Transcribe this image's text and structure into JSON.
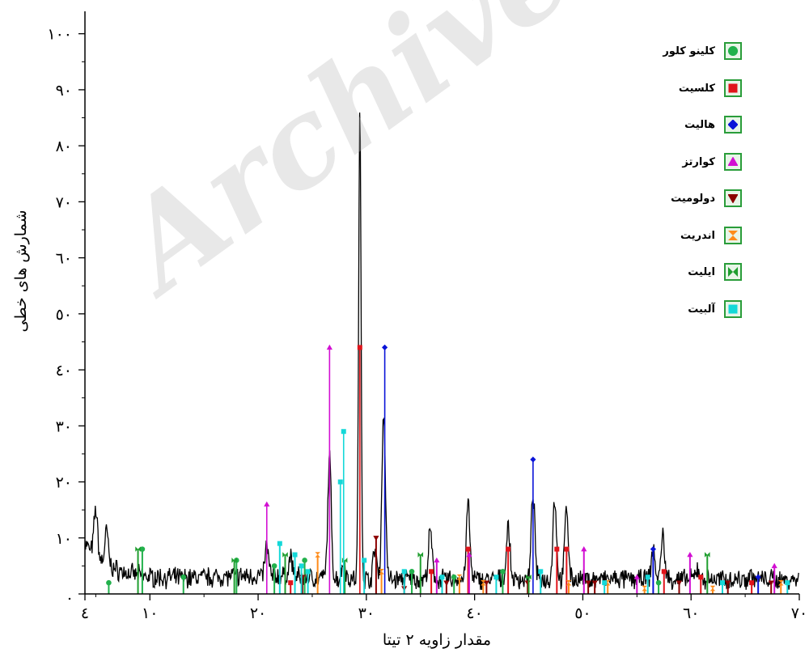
{
  "chart_data": {
    "type": "line",
    "xlabel": "مقدار زاویه ۲ تیتا",
    "ylabel": "شمارش های خطی",
    "xlim": [
      4,
      70
    ],
    "ylim": [
      0,
      104
    ],
    "x_ticks": [
      {
        "value": 4,
        "label": "٤"
      },
      {
        "value": 10,
        "label": "۱۰"
      },
      {
        "value": 20,
        "label": "۲۰"
      },
      {
        "value": 30,
        "label": "۳۰"
      },
      {
        "value": 40,
        "label": "٤۰"
      },
      {
        "value": 50,
        "label": "٥۰"
      },
      {
        "value": 60,
        "label": "٦۰"
      },
      {
        "value": 70,
        "label": "۷۰"
      }
    ],
    "y_ticks": [
      {
        "value": 0,
        "label": "."
      },
      {
        "value": 10,
        "label": "۱۰"
      },
      {
        "value": 20,
        "label": "۲۰"
      },
      {
        "value": 30,
        "label": "۳۰"
      },
      {
        "value": 40,
        "label": "٤۰"
      },
      {
        "value": 50,
        "label": "٥۰"
      },
      {
        "value": 60,
        "label": "٦۰"
      },
      {
        "value": 70,
        "label": "۷۰"
      },
      {
        "value": 80,
        "label": "۸۰"
      },
      {
        "value": 90,
        "label": "۹۰"
      },
      {
        "value": 100,
        "label": "۱۰۰"
      }
    ],
    "pattern_color": "#000000",
    "pattern_peaks": [
      {
        "x": 5.0,
        "y": 11.0
      },
      {
        "x": 6.0,
        "y": 8.5
      },
      {
        "x": 20.8,
        "y": 8.0
      },
      {
        "x": 23.0,
        "y": 6.0
      },
      {
        "x": 26.6,
        "y": 24.0
      },
      {
        "x": 27.9,
        "y": 5.5
      },
      {
        "x": 29.4,
        "y": 86.0
      },
      {
        "x": 30.8,
        "y": 8.0
      },
      {
        "x": 31.6,
        "y": 32.0
      },
      {
        "x": 35.9,
        "y": 11.0
      },
      {
        "x": 39.4,
        "y": 16.0
      },
      {
        "x": 43.1,
        "y": 12.0
      },
      {
        "x": 45.4,
        "y": 18.0
      },
      {
        "x": 47.4,
        "y": 17.0
      },
      {
        "x": 48.5,
        "y": 15.5
      },
      {
        "x": 56.5,
        "y": 8.0
      },
      {
        "x": 57.4,
        "y": 10.5
      },
      {
        "x": 60.6,
        "y": 4.5
      },
      {
        "x": 65.5,
        "y": 3.5
      }
    ],
    "series": [
      {
        "name": "کلینو کلور",
        "color": "#22b14c",
        "marker": "circle",
        "x": [
          6.2,
          9.3,
          13.1,
          18.0,
          21.5,
          24.3,
          34.2,
          38.1,
          42.6,
          57.0
        ],
        "y": [
          2,
          8,
          3,
          6,
          5,
          6,
          4,
          3,
          4,
          2
        ]
      },
      {
        "name": "کلسیت",
        "color": "#e0141b",
        "marker": "square",
        "x": [
          23.0,
          29.4,
          36.0,
          39.4,
          43.1,
          47.6,
          48.5,
          57.5,
          60.9,
          65.6
        ],
        "y": [
          2,
          44,
          4,
          8,
          8,
          8,
          8,
          4,
          3,
          2
        ]
      },
      {
        "name": "هالیت",
        "color": "#0a14d8",
        "marker": "diamond",
        "x": [
          31.7,
          45.4,
          56.5,
          66.2
        ],
        "y": [
          44,
          24,
          8,
          3
        ]
      },
      {
        "name": "کوارتز",
        "color": "#d20fd2",
        "marker": "triangle",
        "x": [
          20.8,
          26.6,
          36.5,
          39.5,
          50.1,
          55.0,
          59.9,
          67.7
        ],
        "y": [
          16,
          44,
          6,
          7,
          8,
          3,
          7,
          5
        ]
      },
      {
        "name": "دولومیت",
        "color": "#8b0000",
        "marker": "triangle-down",
        "x": [
          24.1,
          30.9,
          33.5,
          37.4,
          41.1,
          44.9,
          50.5,
          51.1,
          58.9,
          63.4,
          67.4
        ],
        "y": [
          3,
          10,
          1,
          2,
          2,
          2,
          2,
          2,
          2,
          2,
          2
        ]
      },
      {
        "name": "اندریت",
        "color": "#ff8c1a",
        "marker": "bowtie",
        "x": [
          25.5,
          31.4,
          38.6,
          40.8,
          48.7,
          52.3,
          55.7,
          62.0,
          68.3
        ],
        "y": [
          7,
          4,
          3,
          2,
          2,
          2,
          1,
          1,
          2
        ]
      },
      {
        "name": "ایلیت",
        "color": "#1f9e2f",
        "marker": "hourglass",
        "x": [
          8.9,
          17.8,
          22.5,
          28.0,
          35.0,
          45.0,
          61.5
        ],
        "y": [
          8,
          6,
          7,
          6,
          7,
          3,
          7
        ]
      },
      {
        "name": "آلبیت",
        "color": "#14d8d8",
        "marker": "square",
        "x": [
          22.0,
          23.4,
          24.0,
          24.6,
          27.6,
          27.9,
          29.8,
          33.5,
          37.0,
          42.0,
          46.1,
          52.0,
          56.0,
          62.9,
          68.9
        ],
        "y": [
          9,
          7,
          5,
          4,
          20,
          29,
          6,
          4,
          3,
          3,
          4,
          2,
          3,
          2,
          2
        ]
      }
    ]
  },
  "watermark": "Archive of SID"
}
